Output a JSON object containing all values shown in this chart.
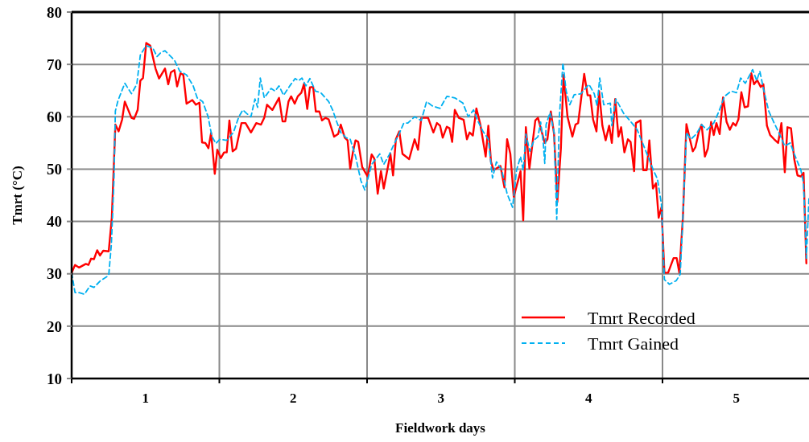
{
  "chart_data": {
    "type": "line",
    "xlabel": "Fieldwork days",
    "ylabel": "Tmrt (°C)",
    "xlim": [
      0,
      5
    ],
    "ylim": [
      10,
      80
    ],
    "xticks": [
      {
        "value": 0,
        "label": null
      },
      {
        "value": 0.5,
        "label": "1"
      },
      {
        "value": 1,
        "label": null
      },
      {
        "value": 1.5,
        "label": "2"
      },
      {
        "value": 2,
        "label": null
      },
      {
        "value": 2.5,
        "label": "3"
      },
      {
        "value": 3,
        "label": null
      },
      {
        "value": 3.5,
        "label": "4"
      },
      {
        "value": 4,
        "label": null
      },
      {
        "value": 4.5,
        "label": "5"
      },
      {
        "value": 5,
        "label": null
      }
    ],
    "yticks": [
      10,
      20,
      30,
      40,
      50,
      60,
      70,
      80
    ],
    "grid": true,
    "legend": "bottom right",
    "marker": "none",
    "series": [
      {
        "name": "Tmrt Recorded",
        "color": "#ff0000",
        "line_style": "solid",
        "x": [
          0,
          0.023,
          0.051,
          0.096,
          0.114,
          0.132,
          0.151,
          0.173,
          0.192,
          0.214,
          0.251,
          0.272,
          0.296,
          0.318,
          0.342,
          0.36,
          0.405,
          0.423,
          0.447,
          0.465,
          0.483,
          0.505,
          0.532,
          0.568,
          0.592,
          0.632,
          0.654,
          0.672,
          0.696,
          0.714,
          0.737,
          0.756,
          0.778,
          0.817,
          0.841,
          0.865,
          0.883,
          0.905,
          0.926,
          0.944,
          0.969,
          0.986,
          1.01,
          1.032,
          1.05,
          1.068,
          1.09,
          1.113,
          1.15,
          1.177,
          1.214,
          1.25,
          1.282,
          1.304,
          1.323,
          1.359,
          1.404,
          1.428,
          1.446,
          1.468,
          1.486,
          1.51,
          1.531,
          1.555,
          1.573,
          1.595,
          1.613,
          1.635,
          1.653,
          1.677,
          1.695,
          1.718,
          1.74,
          1.777,
          1.804,
          1.822,
          1.849,
          1.868,
          1.886,
          1.904,
          1.922,
          1.94,
          1.967,
          2.004,
          2.031,
          2.049,
          2.072,
          2.094,
          2.113,
          2.158,
          2.176,
          2.195,
          2.218,
          2.24,
          2.285,
          2.322,
          2.345,
          2.367,
          2.413,
          2.449,
          2.473,
          2.494,
          2.512,
          2.54,
          2.558,
          2.576,
          2.594,
          2.621,
          2.654,
          2.676,
          2.694,
          2.716,
          2.74,
          2.767,
          2.803,
          2.821,
          2.839,
          2.857,
          2.903,
          2.93,
          2.948,
          2.97,
          2.993,
          3.039,
          3.057,
          3.075,
          3.099,
          3.139,
          3.157,
          3.203,
          3.221,
          3.244,
          3.266,
          3.288,
          3.312,
          3.33,
          3.357,
          3.39,
          3.411,
          3.429,
          3.47,
          3.493,
          3.511,
          3.53,
          3.553,
          3.571,
          3.593,
          3.615,
          3.639,
          3.657,
          3.68,
          3.702,
          3.72,
          3.742,
          3.766,
          3.784,
          3.808,
          3.82,
          3.851,
          3.869,
          3.893,
          3.911,
          3.935,
          3.956,
          3.974,
          3.993,
          4.013,
          4.038,
          4.075,
          4.096,
          4.114,
          4.138,
          4.162,
          4.183,
          4.205,
          4.223,
          4.247,
          4.265,
          4.287,
          4.307,
          4.329,
          4.347,
          4.365,
          4.387,
          4.41,
          4.434,
          4.456,
          4.478,
          4.496,
          4.514,
          4.534,
          4.556,
          4.579,
          4.601,
          4.62,
          4.641,
          4.665,
          4.683,
          4.707,
          4.729,
          4.756,
          4.783,
          4.805,
          4.828,
          4.846,
          4.87,
          4.892,
          4.914,
          4.937,
          4.955,
          4.974
        ],
        "values": [
          30.2,
          31.7,
          31.2,
          31.9,
          31.7,
          32.9,
          32.8,
          34.5,
          33.5,
          34.4,
          34.3,
          40.7,
          58.5,
          57.2,
          59.5,
          62.9,
          59.8,
          59.6,
          61.3,
          66.9,
          67.4,
          74.1,
          73.6,
          69.2,
          67.3,
          69.2,
          66.2,
          68.5,
          68.9,
          65.8,
          68.3,
          68,
          62.5,
          63.2,
          62.3,
          62.7,
          55.1,
          55,
          54,
          56.9,
          49.1,
          53.7,
          52.1,
          53.2,
          53.2,
          59.3,
          53.4,
          53.9,
          58.8,
          58.8,
          57,
          58.8,
          58.5,
          59.8,
          62.3,
          61.3,
          63.6,
          59.1,
          59.1,
          62.9,
          63.9,
          62.5,
          63.9,
          64.6,
          66.3,
          61.5,
          65.6,
          65.7,
          61,
          61,
          59.3,
          59.8,
          59.5,
          56.2,
          56.7,
          58.5,
          56,
          55.5,
          50.1,
          53.2,
          55.5,
          55.2,
          50.4,
          48.6,
          52.8,
          52,
          45.3,
          49.6,
          46.3,
          52.9,
          48.8,
          55.7,
          57.2,
          52.9,
          51.9,
          55.7,
          53.7,
          59.8,
          59.8,
          57,
          58.8,
          58.3,
          56,
          58.1,
          57.8,
          55.2,
          61.3,
          59.8,
          59.4,
          55.7,
          57,
          56.4,
          61.6,
          58.5,
          52.4,
          58.3,
          51.4,
          49.8,
          50.6,
          46.5,
          55.7,
          52.9,
          44.7,
          49.6,
          40.2,
          58,
          50.1,
          59.3,
          59.8,
          55,
          55.7,
          61,
          56.7,
          43.7,
          53.9,
          68,
          60,
          56.2,
          58.5,
          58.8,
          68.2,
          64.1,
          64.1,
          59.5,
          57.2,
          64.9,
          58.3,
          55.5,
          58.3,
          55,
          63.4,
          56.2,
          58,
          53.2,
          55.7,
          55.2,
          49.6,
          58.8,
          59.3,
          49.8,
          49.8,
          55.5,
          46.3,
          47.3,
          40.7,
          42.7,
          30.2,
          30.2,
          33,
          33,
          30.2,
          40.7,
          58.6,
          56,
          53.4,
          54.2,
          57.2,
          58.5,
          52.4,
          53.9,
          59,
          56.5,
          58.8,
          56.7,
          63.7,
          59,
          57.5,
          58.8,
          58.3,
          59.5,
          64.7,
          61.8,
          62,
          68.3,
          66.2,
          67,
          65.7,
          66.2,
          58.3,
          56.5,
          55.7,
          55,
          58.8,
          49.4,
          58,
          57.8,
          51.9,
          48.8,
          48.6,
          49.3,
          32
        ]
      },
      {
        "name": "Tmrt Gained",
        "color": "#00b0f0",
        "line_style": "dashed",
        "x": [
          0,
          0.023,
          0.051,
          0.087,
          0.124,
          0.151,
          0.196,
          0.251,
          0.269,
          0.287,
          0.296,
          0.314,
          0.36,
          0.405,
          0.441,
          0.465,
          0.505,
          0.55,
          0.578,
          0.605,
          0.632,
          0.696,
          0.732,
          0.778,
          0.823,
          0.85,
          0.887,
          0.923,
          0.95,
          0.977,
          1.004,
          1.05,
          1.095,
          1.132,
          1.159,
          1.186,
          1.214,
          1.241,
          1.259,
          1.277,
          1.304,
          1.35,
          1.377,
          1.404,
          1.435,
          1.477,
          1.513,
          1.537,
          1.559,
          1.586,
          1.613,
          1.65,
          1.686,
          1.74,
          1.767,
          1.795,
          1.822,
          1.858,
          1.886,
          1.922,
          1.958,
          1.985,
          2.031,
          2.086,
          2.113,
          2.149,
          2.185,
          2.213,
          2.249,
          2.276,
          2.322,
          2.367,
          2.403,
          2.44,
          2.494,
          2.54,
          2.594,
          2.649,
          2.685,
          2.721,
          2.748,
          2.785,
          2.821,
          2.849,
          2.876,
          2.912,
          2.948,
          2.985,
          3.012,
          3.039,
          3.057,
          3.075,
          3.102,
          3.13,
          3.157,
          3.175,
          3.193,
          3.203,
          3.212,
          3.239,
          3.266,
          3.284,
          3.302,
          3.326,
          3.348,
          3.372,
          3.402,
          3.448,
          3.502,
          3.538,
          3.557,
          3.575,
          3.602,
          3.647,
          3.657,
          3.684,
          3.738,
          3.793,
          3.829,
          3.865,
          3.902,
          3.938,
          3.966,
          3.993,
          4.013,
          4.047,
          4.093,
          4.12,
          4.138,
          4.162,
          4.192,
          4.229,
          4.265,
          4.301,
          4.347,
          4.383,
          4.42,
          4.465,
          4.501,
          4.529,
          4.561,
          4.61,
          4.638,
          4.659,
          4.683,
          4.719,
          4.756,
          4.792,
          4.828,
          4.865,
          4.892,
          4.937,
          4.955,
          4.974,
          4.992
        ],
        "values": [
          30.2,
          26.4,
          26.4,
          26.1,
          27.7,
          27.4,
          28.7,
          29.7,
          35.6,
          48.3,
          61.1,
          63.1,
          66.4,
          64.4,
          66.2,
          71.8,
          73.6,
          73.1,
          71.5,
          72.3,
          72.6,
          70.8,
          68.7,
          68,
          65.9,
          63.6,
          62.9,
          60.1,
          56.2,
          54.9,
          55.7,
          55.5,
          57,
          60,
          61.3,
          60.6,
          60,
          63.4,
          61.8,
          67.4,
          63.6,
          65.4,
          64.9,
          65.9,
          64.1,
          65.9,
          67.3,
          66.9,
          67.4,
          65.9,
          67.3,
          64.9,
          64.6,
          62.9,
          61.3,
          59,
          57,
          56,
          55.7,
          52.4,
          47.8,
          46,
          50.9,
          52.9,
          50.9,
          52.7,
          54.9,
          56.5,
          58.8,
          58.8,
          60,
          59.3,
          62.9,
          62.1,
          61.6,
          63.9,
          63.6,
          62.6,
          60,
          61.3,
          59.3,
          57.2,
          55.7,
          48.3,
          51.4,
          49.8,
          45.3,
          42.7,
          49.8,
          52.4,
          49.8,
          56.7,
          53.4,
          55.5,
          56.2,
          59,
          55,
          51.1,
          58.5,
          60.8,
          57,
          40.4,
          60,
          70.3,
          64.9,
          62.3,
          64.2,
          64.4,
          66.2,
          64.4,
          62.1,
          67.4,
          62.3,
          62.6,
          58.3,
          63.4,
          60.6,
          58.8,
          57.5,
          55,
          52.4,
          49.8,
          48.1,
          43.2,
          28.9,
          28,
          28.7,
          29.9,
          40.7,
          57,
          55.7,
          56.7,
          58.5,
          57.5,
          58.8,
          61.1,
          63.9,
          64.9,
          64.6,
          67.4,
          66.4,
          69,
          66.9,
          68.7,
          65.4,
          61.1,
          58.8,
          56.7,
          54.4,
          55,
          52.9,
          49.8,
          47.3,
          33,
          44.7
        ]
      }
    ]
  }
}
